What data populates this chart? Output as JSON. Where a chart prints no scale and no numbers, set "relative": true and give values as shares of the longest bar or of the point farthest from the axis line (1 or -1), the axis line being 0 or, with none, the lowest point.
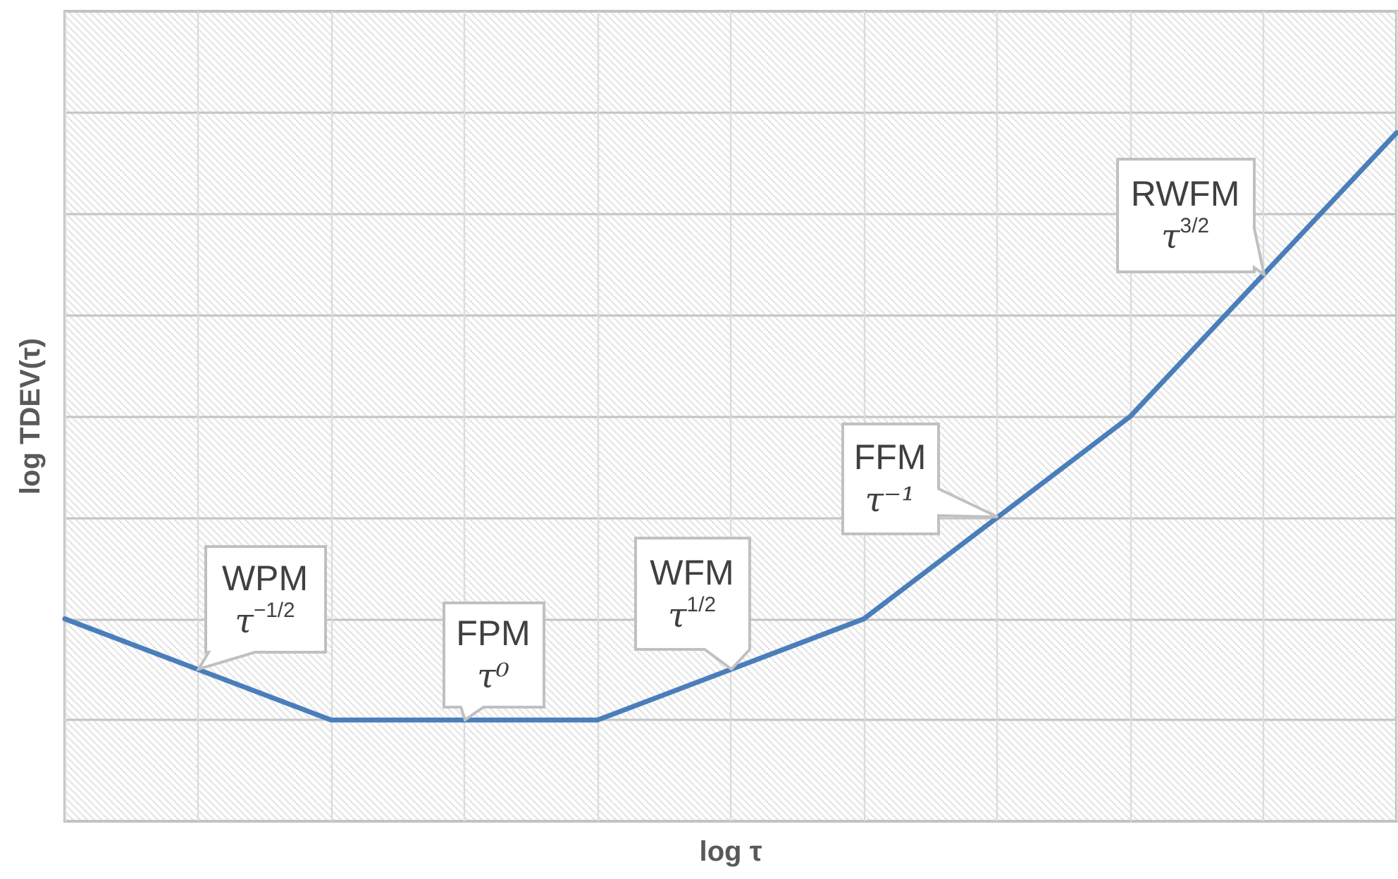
{
  "chart_data": {
    "type": "line",
    "xlabel": "log τ",
    "ylabel": "log TDEV(τ)",
    "categories": [
      null,
      null,
      null,
      null,
      null,
      null
    ],
    "series": [
      {
        "color": "#4a7ebb",
        "values": [
          0.294,
          0.147,
          0.147,
          0.294,
          0.588,
          1
        ]
      }
    ],
    "relative": true,
    "grid": true,
    "tick_labels": false,
    "line_style": "solid",
    "annotations": [
      "WPM\nτ$^{−1/2}$",
      "FPM\nτ⁰",
      "WFM\nτ$^{1/2}$",
      "FFM\nτ⁻¹",
      "RWFM\nτ$^{3/2}$"
    ]
  }
}
